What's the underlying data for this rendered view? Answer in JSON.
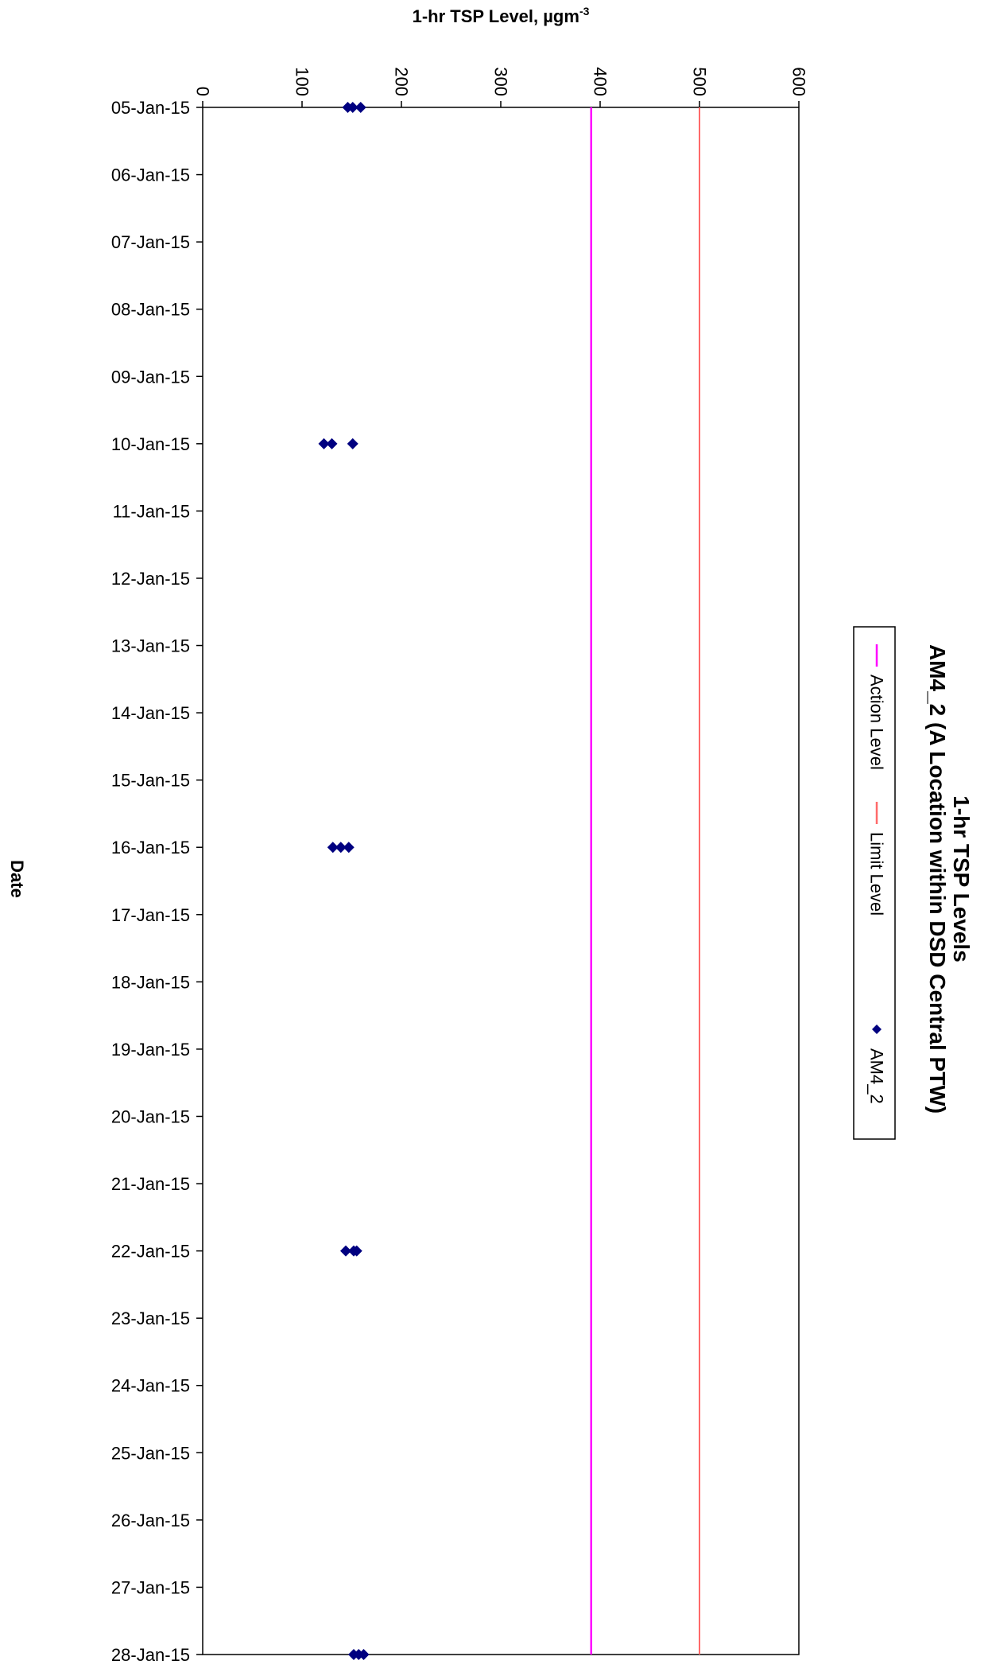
{
  "chart_data": {
    "type": "scatter",
    "title": "1-hr TSP Levels",
    "subtitle": "AM4_2 (A Location within DSD Central PTW)",
    "value_axis": {
      "label_main": "1-hr TSP Level, µgm",
      "label_sup": "-3",
      "range": [
        0,
        600
      ],
      "ticks": [
        "0",
        "100",
        "200",
        "300",
        "400",
        "500",
        "600"
      ]
    },
    "date_axis": {
      "label": "Date",
      "ticks": [
        "05-Jan-15",
        "06-Jan-15",
        "07-Jan-15",
        "08-Jan-15",
        "09-Jan-15",
        "10-Jan-15",
        "11-Jan-15",
        "12-Jan-15",
        "13-Jan-15",
        "14-Jan-15",
        "15-Jan-15",
        "16-Jan-15",
        "17-Jan-15",
        "18-Jan-15",
        "19-Jan-15",
        "20-Jan-15",
        "21-Jan-15",
        "22-Jan-15",
        "23-Jan-15",
        "24-Jan-15",
        "25-Jan-15",
        "26-Jan-15",
        "27-Jan-15",
        "28-Jan-15"
      ]
    },
    "grid": false,
    "legend": {
      "placement": "right",
      "entries": [
        {
          "name": "Action Level",
          "color": "#ff00ff",
          "kind": "line"
        },
        {
          "name": "Limit Level",
          "color": "#ff6a6a",
          "kind": "line"
        },
        {
          "name": "AM4_2",
          "color": "#000080",
          "kind": "marker"
        }
      ]
    },
    "series": [
      {
        "name": "Action Level",
        "color": "#ff00ff",
        "constant": 391
      },
      {
        "name": "Limit Level",
        "color": "#ff6a6a",
        "constant": 500
      },
      {
        "name": "AM4_2",
        "color": "#000080",
        "points": [
          {
            "date": "05-Jan-15",
            "values": [
              146,
              151,
              159
            ]
          },
          {
            "date": "10-Jan-15",
            "values": [
              122,
              130,
              151
            ]
          },
          {
            "date": "16-Jan-15",
            "values": [
              131,
              139,
              147
            ]
          },
          {
            "date": "22-Jan-15",
            "values": [
              144,
              152,
              155
            ]
          },
          {
            "date": "28-Jan-15",
            "values": [
              152,
              157,
              162
            ]
          }
        ]
      }
    ]
  }
}
